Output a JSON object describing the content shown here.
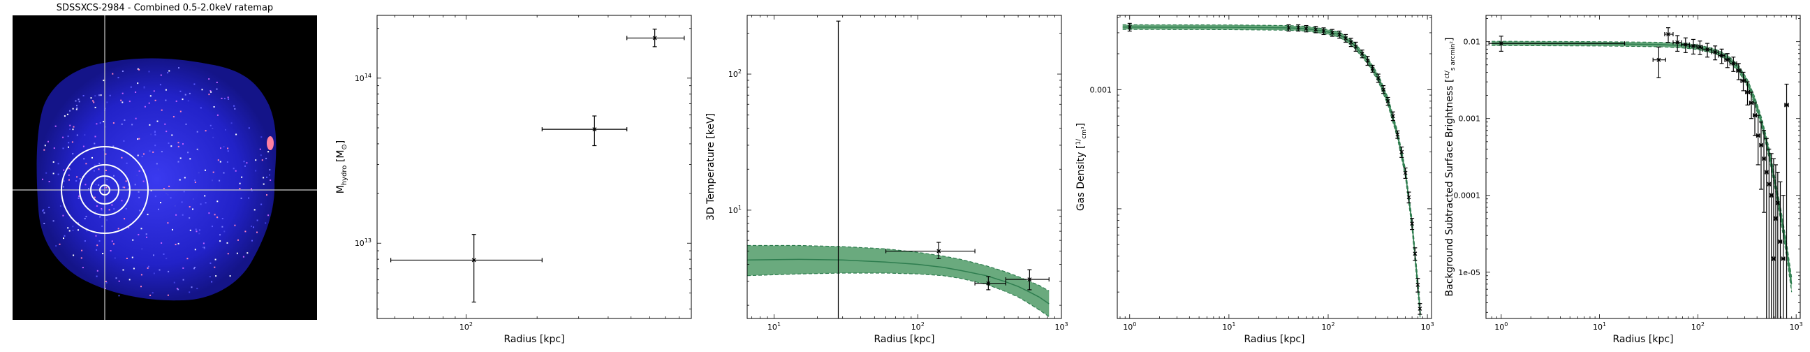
{
  "ratemap": {
    "title": "SDSSXCS-2984 - Combined 0.5-2.0keV ratemap"
  },
  "colors": {
    "band_fill": "#6aaa7e",
    "band_edge": "#2e7d4f",
    "image_bg": "#000000",
    "image_source": "#2a2ad8"
  },
  "chart_data": [
    {
      "type": "scatter",
      "title": "",
      "xlabel": "Radius [kpc]",
      "ylabel": "M",
      "ylabel_sub": "hydro",
      "ylabel_unit": " [M",
      "ylabel_unit_sub": "⊙",
      "ylabel_close": "]",
      "xscale": "log",
      "yscale": "log",
      "xlim": [
        42,
        900
      ],
      "ylim": [
        3500000000000.0,
        240000000000000.0
      ],
      "x_ticks": [
        {
          "v": 100,
          "label": "10",
          "sup": "2"
        }
      ],
      "y_ticks": [
        {
          "v": 10000000000000.0,
          "label": "10",
          "sup": "13"
        },
        {
          "v": 100000000000000.0,
          "label": "10",
          "sup": "14"
        }
      ],
      "points": [
        {
          "x": 108,
          "y": 7900000000000.0,
          "xlo": 48,
          "xhi": 210,
          "ylo": 4400000000000.0,
          "yhi": 11300000000000.0
        },
        {
          "x": 350,
          "y": 49000000000000.0,
          "xlo": 210,
          "xhi": 480,
          "ylo": 39000000000000.0,
          "yhi": 59000000000000.0
        },
        {
          "x": 630,
          "y": 175000000000000.0,
          "xlo": 480,
          "xhi": 840,
          "ylo": 155000000000000.0,
          "yhi": 198000000000000.0
        }
      ]
    },
    {
      "type": "scatter",
      "title": "",
      "xlabel": "Radius [kpc]",
      "ylabel": "3D Temperature [keV]",
      "xscale": "log",
      "yscale": "log",
      "xlim": [
        6.5,
        1000
      ],
      "ylim": [
        1.6,
        270
      ],
      "x_ticks": [
        {
          "v": 10,
          "label": "10",
          "sup": "1"
        },
        {
          "v": 100,
          "label": "10",
          "sup": "2"
        },
        {
          "v": 1000,
          "label": "10",
          "sup": "3"
        }
      ],
      "y_ticks": [
        {
          "v": 10,
          "label": "10",
          "sup": "1"
        },
        {
          "v": 100,
          "label": "10",
          "sup": "2"
        }
      ],
      "points": [
        {
          "x": 28,
          "y": null,
          "xlo": null,
          "xhi": null,
          "ylo": 1.6,
          "yhi": 245
        },
        {
          "x": 140,
          "y": 5.0,
          "xlo": 60,
          "xhi": 250,
          "ylo": 4.4,
          "yhi": 5.8
        },
        {
          "x": 310,
          "y": 2.9,
          "xlo": 250,
          "xhi": 410,
          "ylo": 2.6,
          "yhi": 3.25
        },
        {
          "x": 600,
          "y": 3.1,
          "xlo": 410,
          "xhi": 820,
          "ylo": 2.6,
          "yhi": 3.65
        }
      ],
      "model": {
        "x": [
          6.5,
          15,
          30,
          60,
          100,
          150,
          200,
          300,
          400,
          500,
          600,
          700,
          820
        ],
        "y": [
          4.3,
          4.35,
          4.3,
          4.15,
          4.0,
          3.8,
          3.6,
          3.3,
          3.0,
          2.75,
          2.5,
          2.3,
          2.05
        ],
        "lo": [
          3.3,
          3.4,
          3.45,
          3.45,
          3.4,
          3.3,
          3.15,
          2.85,
          2.55,
          2.3,
          2.05,
          1.85,
          1.65
        ],
        "hi": [
          5.5,
          5.5,
          5.4,
          5.2,
          4.9,
          4.6,
          4.35,
          3.9,
          3.55,
          3.25,
          3.0,
          2.8,
          2.55
        ]
      }
    },
    {
      "type": "line",
      "title": "",
      "xlabel": "Radius [kpc]",
      "ylabel": "Gas Density",
      "ylabel_frac_num": "1",
      "ylabel_frac_den": "cm³",
      "xscale": "log",
      "yscale": "log",
      "xlim": [
        0.75,
        1100
      ],
      "ylim": [
        1.2e-05,
        0.0042
      ],
      "x_ticks": [
        {
          "v": 1,
          "label": "10",
          "sup": "0"
        },
        {
          "v": 10,
          "label": "10",
          "sup": "1"
        },
        {
          "v": 100,
          "label": "10",
          "sup": "2"
        },
        {
          "v": 1000,
          "label": "10",
          "sup": "3"
        }
      ],
      "y_ticks": [
        {
          "v": 0.001,
          "label": "0.001",
          "sup": ""
        }
      ],
      "points": [
        {
          "x": 1,
          "y": 0.00335,
          "ylo": 0.0031,
          "yhi": 0.0036
        },
        {
          "x": 40,
          "y": 0.0033,
          "ylo": 0.0031,
          "yhi": 0.0035
        },
        {
          "x": 50,
          "y": 0.0033,
          "ylo": 0.0031,
          "yhi": 0.0035
        },
        {
          "x": 60,
          "y": 0.00325,
          "ylo": 0.00305,
          "yhi": 0.00345
        },
        {
          "x": 75,
          "y": 0.0032,
          "ylo": 0.003,
          "yhi": 0.0034
        },
        {
          "x": 90,
          "y": 0.0031,
          "ylo": 0.0029,
          "yhi": 0.0033
        },
        {
          "x": 110,
          "y": 0.003,
          "ylo": 0.0028,
          "yhi": 0.0032
        },
        {
          "x": 130,
          "y": 0.0029,
          "ylo": 0.0027,
          "yhi": 0.0031
        },
        {
          "x": 150,
          "y": 0.0027,
          "ylo": 0.0025,
          "yhi": 0.0029
        },
        {
          "x": 170,
          "y": 0.0025,
          "ylo": 0.0023,
          "yhi": 0.0027
        },
        {
          "x": 190,
          "y": 0.0023,
          "ylo": 0.0021,
          "yhi": 0.0025
        },
        {
          "x": 220,
          "y": 0.002,
          "ylo": 0.00185,
          "yhi": 0.00215
        },
        {
          "x": 250,
          "y": 0.00175,
          "ylo": 0.0016,
          "yhi": 0.0019
        },
        {
          "x": 280,
          "y": 0.0015,
          "ylo": 0.0014,
          "yhi": 0.0016
        },
        {
          "x": 320,
          "y": 0.00125,
          "ylo": 0.00115,
          "yhi": 0.00135
        },
        {
          "x": 360,
          "y": 0.001,
          "ylo": 0.00093,
          "yhi": 0.00108
        },
        {
          "x": 400,
          "y": 0.0008,
          "ylo": 0.00074,
          "yhi": 0.00086
        },
        {
          "x": 450,
          "y": 0.0006,
          "ylo": 0.00055,
          "yhi": 0.00065
        },
        {
          "x": 500,
          "y": 0.00042,
          "ylo": 0.00039,
          "yhi": 0.00045
        },
        {
          "x": 550,
          "y": 0.0003,
          "ylo": 0.00027,
          "yhi": 0.00033
        },
        {
          "x": 600,
          "y": 0.0002,
          "ylo": 0.00018,
          "yhi": 0.00022
        },
        {
          "x": 650,
          "y": 0.000125,
          "ylo": 0.000112,
          "yhi": 0.000138
        },
        {
          "x": 700,
          "y": 7.5e-05,
          "ylo": 6.7e-05,
          "yhi": 8.3e-05
        },
        {
          "x": 750,
          "y": 4.2e-05,
          "ylo": 3.7e-05,
          "yhi": 4.7e-05
        },
        {
          "x": 800,
          "y": 2.3e-05,
          "ylo": 2e-05,
          "yhi": 2.6e-05
        },
        {
          "x": 840,
          "y": 1.45e-05,
          "ylo": 1.3e-05,
          "yhi": 1.6e-05
        }
      ],
      "model": {
        "x": [
          0.85,
          1,
          10,
          40,
          60,
          90,
          130,
          180,
          250,
          320,
          400,
          500,
          600,
          700,
          800,
          850
        ],
        "y": [
          0.00335,
          0.00335,
          0.00334,
          0.0033,
          0.00325,
          0.0031,
          0.0029,
          0.0024,
          0.00175,
          0.00125,
          0.0008,
          0.00042,
          0.0002,
          7.5e-05,
          2.3e-05,
          1.3e-05
        ],
        "lo": [
          0.0032,
          0.0032,
          0.00319,
          0.00315,
          0.0031,
          0.00296,
          0.00276,
          0.00228,
          0.00165,
          0.00117,
          0.00074,
          0.00039,
          0.000185,
          6.8e-05,
          2.05e-05,
          1.15e-05
        ],
        "hi": [
          0.0035,
          0.0035,
          0.00349,
          0.00345,
          0.0034,
          0.00324,
          0.00304,
          0.00252,
          0.00185,
          0.00133,
          0.00086,
          0.00045,
          0.000215,
          8.2e-05,
          2.55e-05,
          1.45e-05
        ]
      }
    },
    {
      "type": "scatter",
      "title": "",
      "xlabel": "Radius [kpc]",
      "ylabel": "Background Subtracted Surface Brightness",
      "ylabel_frac_num": "ct",
      "ylabel_frac_den": "s arcmin²",
      "xscale": "log",
      "yscale": "log",
      "xlim": [
        0.7,
        1100
      ],
      "ylim": [
        2.5e-06,
        0.022
      ],
      "x_ticks": [
        {
          "v": 1,
          "label": "10",
          "sup": "0"
        },
        {
          "v": 10,
          "label": "10",
          "sup": "1"
        },
        {
          "v": 100,
          "label": "10",
          "sup": "2"
        },
        {
          "v": 1000,
          "label": "10",
          "sup": "3"
        }
      ],
      "y_ticks": [
        {
          "v": 0.01,
          "label": "0.01",
          "sup": ""
        },
        {
          "v": 0.001,
          "label": "0.001",
          "sup": ""
        },
        {
          "v": 0.0001,
          "label": "0.0001",
          "sup": ""
        },
        {
          "v": 1e-05,
          "label": "1e-05",
          "sup": ""
        }
      ],
      "points": [
        {
          "x": 1,
          "y": 0.0095,
          "xlo": 0.75,
          "xhi": 18,
          "ylo": 0.0075,
          "yhi": 0.0118
        },
        {
          "x": 40,
          "y": 0.0058,
          "xlo": 35,
          "xhi": 47,
          "ylo": 0.0034,
          "yhi": 0.0085
        },
        {
          "x": 50,
          "y": 0.0125,
          "xlo": 46,
          "xhi": 56,
          "ylo": 0.0098,
          "yhi": 0.0152
        },
        {
          "x": 62,
          "y": 0.0098,
          "xlo": 56,
          "xhi": 68,
          "ylo": 0.0075,
          "yhi": 0.012
        },
        {
          "x": 75,
          "y": 0.0092,
          "xlo": 68,
          "xhi": 82,
          "ylo": 0.0072,
          "yhi": 0.0112
        },
        {
          "x": 90,
          "y": 0.0088,
          "xlo": 82,
          "xhi": 98,
          "ylo": 0.0069,
          "yhi": 0.0107
        },
        {
          "x": 105,
          "y": 0.0085,
          "xlo": 98,
          "xhi": 112,
          "ylo": 0.0068,
          "yhi": 0.0102
        },
        {
          "x": 125,
          "y": 0.0079,
          "xlo": 112,
          "xhi": 138,
          "ylo": 0.0063,
          "yhi": 0.0095
        },
        {
          "x": 150,
          "y": 0.0073,
          "xlo": 138,
          "xhi": 162,
          "ylo": 0.0058,
          "yhi": 0.0088
        },
        {
          "x": 175,
          "y": 0.0066,
          "xlo": 162,
          "xhi": 188,
          "ylo": 0.0052,
          "yhi": 0.008
        },
        {
          "x": 200,
          "y": 0.0058,
          "xlo": 188,
          "xhi": 212,
          "ylo": 0.0046,
          "yhi": 0.007
        },
        {
          "x": 230,
          "y": 0.0052,
          "xlo": 212,
          "xhi": 248,
          "ylo": 0.0041,
          "yhi": 0.0063
        },
        {
          "x": 260,
          "y": 0.0042,
          "xlo": 248,
          "xhi": 274,
          "ylo": 0.0032,
          "yhi": 0.0052
        },
        {
          "x": 290,
          "y": 0.0031,
          "xlo": 274,
          "xhi": 306,
          "ylo": 0.0023,
          "yhi": 0.004
        },
        {
          "x": 320,
          "y": 0.0022,
          "xlo": 306,
          "xhi": 336,
          "ylo": 0.0015,
          "yhi": 0.003
        },
        {
          "x": 350,
          "y": 0.0016,
          "xlo": 336,
          "xhi": 366,
          "ylo": 0.001,
          "yhi": 0.0022
        },
        {
          "x": 380,
          "y": 0.0011,
          "xlo": 366,
          "xhi": 396,
          "ylo": 0.0006,
          "yhi": 0.0016
        },
        {
          "x": 410,
          "y": 0.0006,
          "xlo": 396,
          "xhi": 426,
          "ylo": 0.00025,
          "yhi": 0.0011
        },
        {
          "x": 440,
          "y": 0.00045,
          "xlo": 426,
          "xhi": 456,
          "ylo": 0.00012,
          "yhi": 0.0009
        },
        {
          "x": 470,
          "y": 0.0003,
          "xlo": 456,
          "xhi": 486,
          "ylo": 6e-05,
          "yhi": 0.0007
        },
        {
          "x": 500,
          "y": 0.0002,
          "xlo": 486,
          "xhi": 516,
          "ylo": 2.5e-06,
          "yhi": 0.00055
        },
        {
          "x": 530,
          "y": 0.00014,
          "xlo": 516,
          "xhi": 546,
          "ylo": 2.5e-06,
          "yhi": 0.0004
        },
        {
          "x": 560,
          "y": 0.0001,
          "xlo": 546,
          "xhi": 576,
          "ylo": 2.5e-06,
          "yhi": 0.00035
        },
        {
          "x": 590,
          "y": 1.5e-05,
          "xlo": 576,
          "xhi": 606,
          "ylo": 2.5e-06,
          "yhi": 0.0003
        },
        {
          "x": 620,
          "y": 5e-05,
          "xlo": 606,
          "xhi": 636,
          "ylo": 2.5e-06,
          "yhi": 0.00025
        },
        {
          "x": 650,
          "y": 8e-05,
          "xlo": 636,
          "xhi": 666,
          "ylo": 2.5e-06,
          "yhi": 0.0002
        },
        {
          "x": 690,
          "y": 2.5e-05,
          "xlo": 666,
          "xhi": 714,
          "ylo": 2.5e-06,
          "yhi": 0.00015
        },
        {
          "x": 740,
          "y": 1.5e-05,
          "xlo": 714,
          "xhi": 766,
          "ylo": 2.5e-06,
          "yhi": 0.0001
        },
        {
          "x": 800,
          "y": 0.0015,
          "xlo": 766,
          "xhi": 834,
          "ylo": 2.5e-06,
          "yhi": 0.0028
        }
      ],
      "model": {
        "x": [
          0.8,
          1,
          10,
          40,
          70,
          100,
          150,
          200,
          260,
          320,
          380,
          440,
          500,
          560,
          620,
          700,
          800,
          900
        ],
        "y": [
          0.0095,
          0.0095,
          0.0094,
          0.0092,
          0.0089,
          0.0085,
          0.0075,
          0.0062,
          0.0045,
          0.0029,
          0.0017,
          0.00095,
          0.0005,
          0.00026,
          0.00013,
          5.5e-05,
          2e-05,
          7e-06
        ],
        "lo": [
          0.0089,
          0.0089,
          0.0088,
          0.0086,
          0.0083,
          0.0079,
          0.007,
          0.0057,
          0.0041,
          0.0026,
          0.0015,
          0.00083,
          0.00043,
          0.00022,
          0.00011,
          4.5e-05,
          1.6e-05,
          5.5e-06
        ],
        "hi": [
          0.0101,
          0.0101,
          0.01,
          0.0098,
          0.0095,
          0.0091,
          0.008,
          0.0067,
          0.0049,
          0.0032,
          0.0019,
          0.00107,
          0.00057,
          0.0003,
          0.00015,
          6.5e-05,
          2.4e-05,
          8.5e-06
        ]
      }
    }
  ]
}
